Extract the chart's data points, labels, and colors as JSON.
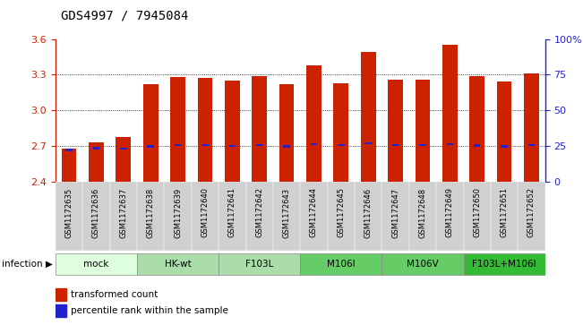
{
  "title": "GDS4997 / 7945084",
  "samples": [
    "GSM1172635",
    "GSM1172636",
    "GSM1172637",
    "GSM1172638",
    "GSM1172639",
    "GSM1172640",
    "GSM1172641",
    "GSM1172642",
    "GSM1172643",
    "GSM1172644",
    "GSM1172645",
    "GSM1172646",
    "GSM1172647",
    "GSM1172648",
    "GSM1172649",
    "GSM1172650",
    "GSM1172651",
    "GSM1172652"
  ],
  "bar_values": [
    2.68,
    2.73,
    2.78,
    3.22,
    3.28,
    3.27,
    3.25,
    3.29,
    3.22,
    3.38,
    3.23,
    3.49,
    3.26,
    3.26,
    3.55,
    3.29,
    3.24,
    3.31
  ],
  "percentile_values": [
    2.67,
    2.685,
    2.682,
    2.7,
    2.71,
    2.71,
    2.702,
    2.71,
    2.7,
    2.718,
    2.708,
    2.725,
    2.708,
    2.708,
    2.718,
    2.705,
    2.7,
    2.71
  ],
  "bar_bottom": 2.4,
  "ylim_left": [
    2.4,
    3.6
  ],
  "ylim_right": [
    0,
    100
  ],
  "yticks_left": [
    2.4,
    2.7,
    3.0,
    3.3,
    3.6
  ],
  "yticks_right": [
    0,
    25,
    50,
    75,
    100
  ],
  "ytick_labels_right": [
    "0",
    "25",
    "50",
    "75",
    "100%"
  ],
  "bar_color": "#cc2200",
  "percentile_color": "#2222cc",
  "bg_color": "#ffffff",
  "groups": [
    {
      "label": "mock",
      "indices": [
        0,
        1,
        2
      ],
      "color": "#ddffdd"
    },
    {
      "label": "HK-wt",
      "indices": [
        3,
        4,
        5
      ],
      "color": "#aaddaa"
    },
    {
      "label": "F103L",
      "indices": [
        6,
        7,
        8
      ],
      "color": "#aaddaa"
    },
    {
      "label": "M106I",
      "indices": [
        9,
        10,
        11
      ],
      "color": "#66cc66"
    },
    {
      "label": "M106V",
      "indices": [
        12,
        13,
        14
      ],
      "color": "#66cc66"
    },
    {
      "label": "F103L+M106I",
      "indices": [
        15,
        16,
        17
      ],
      "color": "#33bb33"
    }
  ],
  "bar_width": 0.55,
  "title_fontsize": 10,
  "tick_fontsize": 7
}
